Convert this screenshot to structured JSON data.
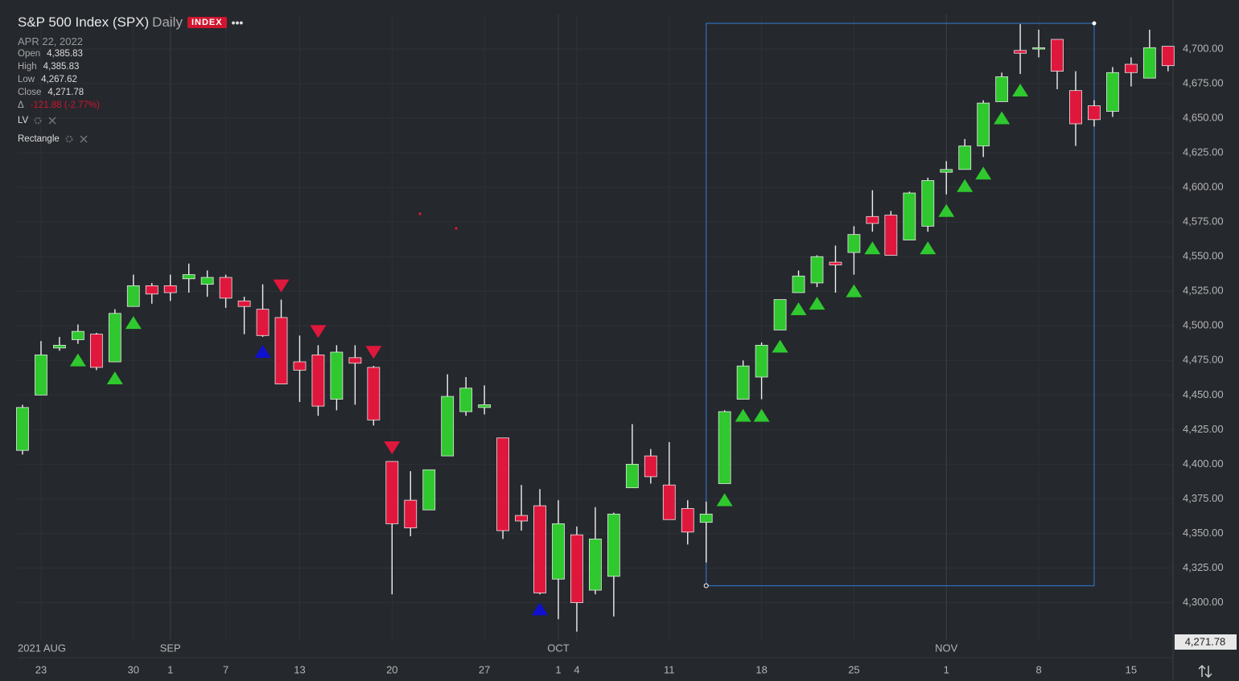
{
  "header": {
    "title": "S&P 500 Index (SPX)",
    "interval": "Daily",
    "badge": "INDEX",
    "date": "APR 22, 2022",
    "rows": [
      {
        "label": "Open",
        "value": "4,385.83"
      },
      {
        "label": "High",
        "value": "4,385.83"
      },
      {
        "label": "Low",
        "value": "4,267.62"
      },
      {
        "label": "Close",
        "value": "4,271.78"
      },
      {
        "label": "Δ",
        "value": "-121.88 (-2.77%)"
      }
    ],
    "studies": [
      "LV",
      "Rectangle"
    ],
    "last_price": "4,271.78"
  },
  "chart_data": {
    "type": "candlestick",
    "categories": [
      null,
      "23",
      null,
      null,
      null,
      null,
      "30",
      null,
      "1",
      null,
      null,
      "7",
      null,
      null,
      null,
      "13",
      null,
      null,
      null,
      null,
      "20",
      null,
      null,
      null,
      null,
      "27",
      null,
      null,
      null,
      "1",
      "4",
      null,
      null,
      null,
      null,
      "11",
      null,
      null,
      null,
      null,
      "18",
      null,
      null,
      null,
      null,
      "25",
      null,
      null,
      null,
      null,
      "1",
      null,
      null,
      null,
      null,
      "8",
      null,
      null,
      null,
      null,
      "15",
      null,
      null
    ],
    "month_labels": [
      "2021 AUG",
      null,
      null,
      null,
      null,
      null,
      null,
      null,
      "SEP",
      null,
      null,
      null,
      null,
      null,
      null,
      null,
      null,
      null,
      null,
      null,
      null,
      null,
      null,
      null,
      null,
      null,
      null,
      null,
      null,
      "OCT",
      null,
      null,
      null,
      null,
      null,
      null,
      null,
      null,
      null,
      null,
      null,
      null,
      null,
      null,
      null,
      null,
      null,
      null,
      null,
      null,
      "NOV",
      null,
      null,
      null,
      null,
      null,
      null,
      null,
      null,
      null,
      null,
      null,
      null
    ],
    "open": [
      4410,
      4450,
      4484,
      4490,
      4494,
      4474,
      4514,
      4529,
      4529,
      4534,
      4530,
      4535,
      4518,
      4512,
      4506,
      4474,
      4479,
      4447,
      4477,
      4470,
      4402,
      4374,
      4367,
      4406,
      4438,
      4441,
      4419,
      4363,
      4370,
      4317,
      4349,
      4309,
      4319,
      4383,
      4406,
      4385,
      4368,
      4358,
      4386,
      4447,
      4463,
      4497,
      4524,
      4531,
      4546,
      4553,
      4579,
      4580,
      4562,
      4572,
      4611,
      4613,
      4630,
      4662,
      4699,
      4700,
      4707,
      4670,
      4659,
      4655,
      4689,
      4679,
      4702
    ],
    "high": [
      4443,
      4489,
      4492,
      4501,
      4495,
      4512,
      4537,
      4531,
      4537,
      4545,
      4540,
      4537,
      4521,
      4530,
      4519,
      4493,
      4486,
      4486,
      4486,
      4471,
      4402,
      4395,
      4396,
      4465,
      4463,
      4457,
      4419,
      4385,
      4382,
      4374,
      4355,
      4369,
      4365,
      4429,
      4411,
      4416,
      4374,
      4373,
      4439,
      4475,
      4488,
      4519,
      4540,
      4551,
      4558,
      4572,
      4598,
      4583,
      4597,
      4607,
      4619,
      4635,
      4663,
      4683,
      4718,
      4714,
      4707,
      4684,
      4663,
      4687,
      4694,
      4714,
      4702
    ],
    "low": [
      4407,
      4450,
      4482,
      4487,
      4468,
      4474,
      4514,
      4516,
      4518,
      4524,
      4521,
      4513,
      4494,
      4492,
      4458,
      4445,
      4435,
      4439,
      4443,
      4428,
      4306,
      4348,
      4367,
      4406,
      4435,
      4436,
      4346,
      4352,
      4306,
      4288,
      4279,
      4306,
      4290,
      4383,
      4386,
      4360,
      4342,
      4329,
      4386,
      4447,
      4447,
      4497,
      4524,
      4528,
      4524,
      4537,
      4568,
      4551,
      4562,
      4568,
      4595,
      4613,
      4622,
      4662,
      4682,
      4694,
      4671,
      4630,
      4644,
      4651,
      4673,
      4679,
      4684
    ],
    "close": [
      4441,
      4479,
      4486,
      4496,
      4470,
      4509,
      4529,
      4523,
      4524,
      4537,
      4535,
      4520,
      4514,
      4493,
      4458,
      4468,
      4442,
      4481,
      4473,
      4432,
      4357,
      4354,
      4396,
      4449,
      4455,
      4443,
      4352,
      4359,
      4307,
      4357,
      4300,
      4346,
      4364,
      4400,
      4391,
      4360,
      4351,
      4364,
      4438,
      4471,
      4486,
      4519,
      4536,
      4550,
      4544,
      4566,
      4574,
      4551,
      4596,
      4605,
      4613,
      4630,
      4661,
      4680,
      4697,
      4701,
      4684,
      4646,
      4649,
      4683,
      4683,
      4701,
      4688
    ],
    "up_color": "#2fc82f",
    "down_color": "#e0173c",
    "signals": {
      "up": [
        3,
        5,
        6,
        38,
        39,
        40,
        41,
        42,
        43,
        45,
        46,
        49,
        50,
        51,
        52,
        53,
        54
      ],
      "down": [
        14,
        16,
        19,
        20
      ],
      "lv": [
        13,
        28
      ]
    },
    "signal_colors": {
      "up": "#2fc82f",
      "down": "#e0173c",
      "lv": "#1010d0"
    },
    "rectangle": {
      "start": 37,
      "end": 58,
      "top": 4718.6,
      "bottom": 4312.2,
      "color": "#2f6fbf"
    },
    "ylim": [
      4273,
      4725
    ],
    "yticks": [
      {
        "value": 4300,
        "label": "4,300.00"
      },
      {
        "value": 4325,
        "label": "4,325.00"
      },
      {
        "value": 4350,
        "label": "4,350.00"
      },
      {
        "value": 4375,
        "label": "4,375.00"
      },
      {
        "value": 4400,
        "label": "4,400.00"
      },
      {
        "value": 4425,
        "label": "4,425.00"
      },
      {
        "value": 4450,
        "label": "4,450.00"
      },
      {
        "value": 4475,
        "label": "4,475.00"
      },
      {
        "value": 4500,
        "label": "4,500.00"
      },
      {
        "value": 4525,
        "label": "4,525.00"
      },
      {
        "value": 4550,
        "label": "4,550.00"
      },
      {
        "value": 4575,
        "label": "4,575.00"
      },
      {
        "value": 4600,
        "label": "4,600.00"
      },
      {
        "value": 4625,
        "label": "4,625.00"
      },
      {
        "value": 4650,
        "label": "4,650.00"
      },
      {
        "value": 4675,
        "label": "4,675.00"
      },
      {
        "value": 4700,
        "label": "4,700.00"
      }
    ],
    "grid": true
  }
}
